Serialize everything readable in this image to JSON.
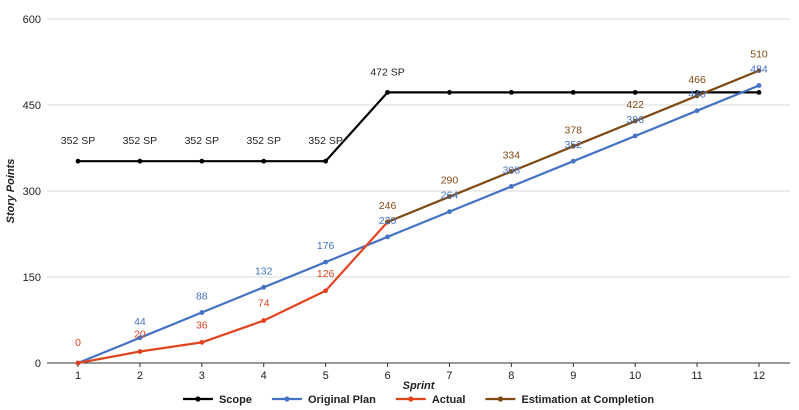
{
  "chart_data": {
    "type": "line",
    "title": "",
    "xlabel": "Sprint",
    "ylabel": "Story Points",
    "x": [
      1,
      2,
      3,
      4,
      5,
      6,
      7,
      8,
      9,
      10,
      11,
      12
    ],
    "xlim": [
      1,
      12
    ],
    "ylim": [
      0,
      600
    ],
    "yticks": [
      0,
      150,
      300,
      450,
      600
    ],
    "grid": true,
    "legend_position": "bottom",
    "series": [
      {
        "name": "Scope",
        "color": "#000000",
        "x": [
          1,
          2,
          3,
          4,
          5,
          6,
          7,
          8,
          9,
          10,
          11,
          12
        ],
        "values": [
          352,
          352,
          352,
          352,
          352,
          472,
          472,
          472,
          472,
          472,
          472,
          472
        ],
        "labels": [
          "352 SP",
          "352 SP",
          "352 SP",
          "352 SP",
          "352 SP",
          "472 SP",
          null,
          null,
          null,
          null,
          null,
          null
        ]
      },
      {
        "name": "Original Plan",
        "color": "#4472c4",
        "x": [
          1,
          2,
          3,
          4,
          5,
          6,
          7,
          8,
          9,
          10,
          11,
          12
        ],
        "values": [
          0,
          44,
          88,
          132,
          176,
          220,
          264,
          308,
          352,
          396,
          440,
          484
        ],
        "labels": [
          null,
          "44",
          "88",
          "132",
          "176",
          "220",
          "264",
          "308",
          "352",
          "396",
          "440",
          "484"
        ]
      },
      {
        "name": "Actual",
        "color": "#e0441f",
        "x": [
          1,
          2,
          3,
          4,
          5,
          6
        ],
        "values": [
          0,
          20,
          36,
          74,
          126,
          246
        ],
        "labels": [
          "0",
          "20",
          "36",
          "74",
          "126",
          null
        ]
      },
      {
        "name": "Estimation at Completion",
        "color": "#7f4a12",
        "x": [
          6,
          7,
          8,
          9,
          10,
          11,
          12
        ],
        "values": [
          246,
          290,
          334,
          378,
          422,
          466,
          510
        ],
        "labels": [
          "246",
          "290",
          "334",
          "378",
          "422",
          "466",
          "510"
        ]
      }
    ]
  }
}
